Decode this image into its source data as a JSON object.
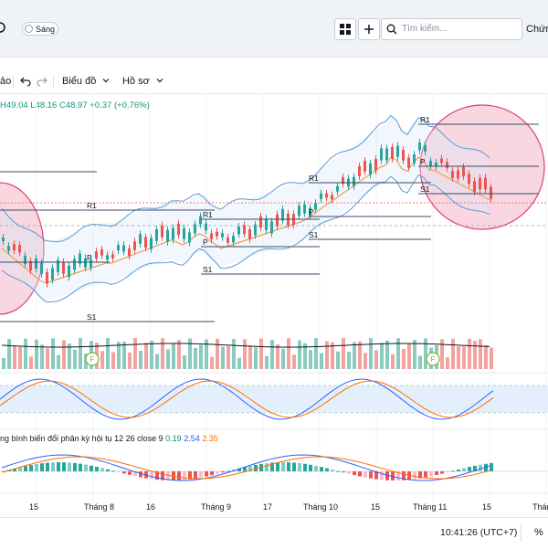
{
  "topbar": {
    "theme_toggle_label": "Sáng",
    "search_placeholder": "Tìm kiếm...",
    "stock_label": "Chứn"
  },
  "toolbar": {
    "left_cut_label": "ảo",
    "chart_menu_label": "Biểu đồ",
    "profile_menu_label": "Hồ sơ"
  },
  "quote": {
    "high": "H49.04",
    "low": "L48.16",
    "close": "C48.97",
    "change": "+0.37 (+0.76%)"
  },
  "pivot_labels": {
    "r1": "R1",
    "p": "P",
    "s1": "S1"
  },
  "macd_label": {
    "title": "ng bình biến đổi phân kỳ hội tụ 12 26 close 9",
    "macd_value": "0.19",
    "signal_value": "2.54",
    "hist_value": "2.35"
  },
  "signal_marker_letter": "F",
  "time_axis": {
    "ticks": [
      "15",
      "Tháng 8",
      "16",
      "Tháng 9",
      "17",
      "Tháng 10",
      "15",
      "Tháng 11",
      "15",
      "Thán"
    ]
  },
  "statusbar": {
    "clock": "10:41:26 (UTC+7)",
    "percent_label": "%"
  },
  "colors": {
    "up": "#26a69a",
    "down": "#ef5350",
    "band": "#5b9bd5",
    "ma": "#f0a050",
    "pivot": "#3a4a6b",
    "highlight": "#e0407a"
  }
}
